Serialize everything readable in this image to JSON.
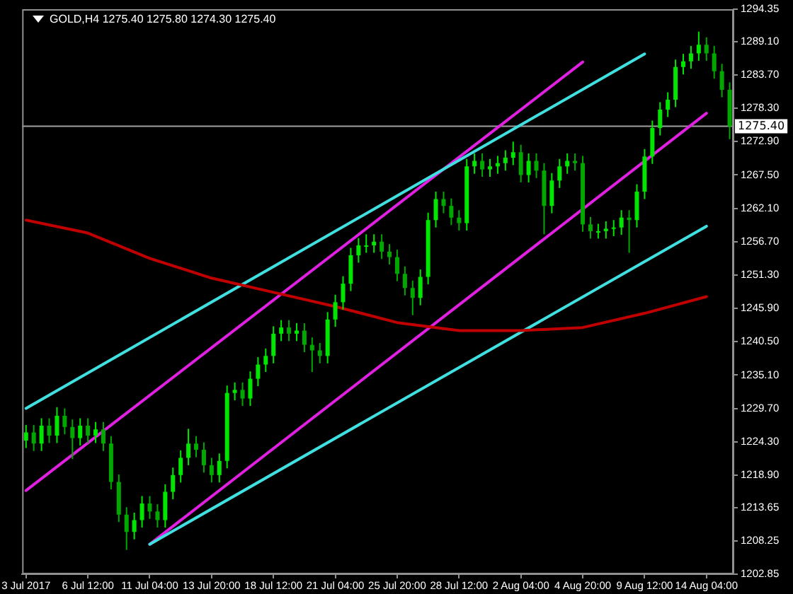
{
  "chart_data": {
    "type": "candlestick",
    "title": "GOLD,H4 1275.40 1275.80 1274.30 1275.40",
    "colors": [
      "#00e600",
      "#00a800",
      "#00e600",
      "#00a800",
      "#00e600",
      "#00a800",
      "#00a800",
      "#00e600",
      "#00a800",
      "#00e600",
      "#00a800",
      "#00a800",
      "#00a800",
      "#00a800",
      "#00e600",
      "#00e600",
      "#00a800",
      "#00a800",
      "#00e600",
      "#00e600",
      "#00e600",
      "#00e600",
      "#00a800",
      "#00a800",
      "#00a800",
      "#00e600",
      "#00e600",
      "#00e600",
      "#00a800",
      "#00e600",
      "#00e600",
      "#00e600",
      "#00e600",
      "#00e600",
      "#00a800",
      "#00e600",
      "#00a800",
      "#00a800",
      "#00a800",
      "#00e600",
      "#00e600",
      "#00e600",
      "#00e600",
      "#00e600",
      "#00e600",
      "#00e600",
      "#00a800",
      "#00a800",
      "#00a800",
      "#00a800",
      "#00a800",
      "#00e600",
      "#00e600",
      "#00e600",
      "#00a800",
      "#00a800",
      "#00a800",
      "#00e600",
      "#00e600",
      "#00a800",
      "#00e600",
      "#00e600",
      "#00e600",
      "#00e600",
      "#00a800",
      "#00e600",
      "#00a800",
      "#00a800",
      "#00e600",
      "#00e600",
      "#00e600",
      "#00a800",
      "#00a800",
      "#00a800",
      "#00e600",
      "#00e600",
      "#00e600",
      "#00e600",
      "#00a800",
      "#00e600",
      "#00e600",
      "#00e600",
      "#00e600",
      "#00e600",
      "#00e600",
      "#00e600",
      "#00e600",
      "#00e600",
      "#00a800",
      "#00a800",
      "#00a800",
      "#00a800"
    ],
    "categories": [
      "3 Jul 2017",
      null,
      null,
      null,
      null,
      null,
      null,
      null,
      "6 Jul 12:00",
      null,
      null,
      null,
      null,
      null,
      null,
      null,
      "11 Jul 04:00",
      null,
      null,
      null,
      null,
      null,
      null,
      null,
      "13 Jul 20:00",
      null,
      null,
      null,
      null,
      null,
      null,
      null,
      "18 Jul 12:00",
      null,
      null,
      null,
      null,
      null,
      null,
      null,
      "21 Jul 04:00",
      null,
      null,
      null,
      null,
      null,
      null,
      null,
      "25 Jul 20:00",
      null,
      null,
      null,
      null,
      null,
      null,
      null,
      "28 Jul 12:00",
      null,
      null,
      null,
      null,
      null,
      null,
      null,
      "2 Aug 04:00",
      null,
      null,
      null,
      null,
      null,
      null,
      null,
      "4 Aug 20:00",
      null,
      null,
      null,
      null,
      null,
      null,
      null,
      "9 Aug 12:00",
      null,
      null,
      null,
      null,
      null,
      null,
      null,
      "14 Aug 04:00",
      null,
      null,
      null
    ],
    "ohlc": [
      [
        1224.5,
        1227.0,
        1223.3,
        1225.8
      ],
      [
        1225.8,
        1227.0,
        1222.8,
        1224.0
      ],
      [
        1224.0,
        1228.1,
        1222.8,
        1226.9
      ],
      [
        1226.9,
        1228.1,
        1224.1,
        1225.3
      ],
      [
        1225.3,
        1229.9,
        1224.1,
        1228.5
      ],
      [
        1228.5,
        1229.7,
        1225.5,
        1226.7
      ],
      [
        1226.7,
        1227.9,
        1221.5,
        1224.9
      ],
      [
        1224.9,
        1228.1,
        1223.7,
        1226.9
      ],
      [
        1226.9,
        1228.1,
        1224.1,
        1225.3
      ],
      [
        1225.3,
        1227.5,
        1224.1,
        1226.3
      ],
      [
        1226.3,
        1227.5,
        1222.8,
        1224.0
      ],
      [
        1224.0,
        1225.2,
        1216.6,
        1217.8
      ],
      [
        1217.8,
        1219.0,
        1211.3,
        1212.5
      ],
      [
        1212.5,
        1213.7,
        1206.8,
        1209.7
      ],
      [
        1209.7,
        1212.8,
        1208.5,
        1211.6
      ],
      [
        1211.6,
        1215.5,
        1210.4,
        1214.3
      ],
      [
        1214.3,
        1215.5,
        1211.8,
        1213.0
      ],
      [
        1213.0,
        1214.2,
        1210.4,
        1211.6
      ],
      [
        1211.6,
        1217.4,
        1210.4,
        1216.2
      ],
      [
        1216.2,
        1220.1,
        1215.0,
        1218.9
      ],
      [
        1218.9,
        1222.9,
        1217.7,
        1221.7
      ],
      [
        1221.7,
        1226.4,
        1220.5,
        1224.0
      ],
      [
        1224.0,
        1225.2,
        1221.8,
        1223.0
      ],
      [
        1223.0,
        1224.2,
        1219.3,
        1220.5
      ],
      [
        1220.5,
        1221.7,
        1217.7,
        1218.9
      ],
      [
        1218.9,
        1222.4,
        1217.7,
        1221.2
      ],
      [
        1221.2,
        1233.4,
        1220.0,
        1232.2
      ],
      [
        1232.2,
        1233.9,
        1231.0,
        1232.7
      ],
      [
        1232.7,
        1233.9,
        1230.1,
        1231.3
      ],
      [
        1231.3,
        1235.7,
        1230.1,
        1234.5
      ],
      [
        1234.5,
        1238.0,
        1233.3,
        1236.8
      ],
      [
        1236.8,
        1239.4,
        1235.6,
        1238.2
      ],
      [
        1238.2,
        1243.0,
        1237.0,
        1241.8
      ],
      [
        1241.8,
        1244.0,
        1240.6,
        1242.8
      ],
      [
        1242.8,
        1244.0,
        1240.6,
        1241.8
      ],
      [
        1241.8,
        1243.5,
        1240.6,
        1242.3
      ],
      [
        1242.3,
        1243.5,
        1238.8,
        1240.0
      ],
      [
        1240.0,
        1241.2,
        1235.6,
        1239.1
      ],
      [
        1239.1,
        1240.3,
        1237.0,
        1238.2
      ],
      [
        1238.2,
        1245.3,
        1237.0,
        1244.1
      ],
      [
        1244.1,
        1248.1,
        1242.9,
        1246.9
      ],
      [
        1246.9,
        1251.1,
        1245.7,
        1249.9
      ],
      [
        1249.9,
        1255.7,
        1248.7,
        1254.5
      ],
      [
        1254.5,
        1257.3,
        1253.3,
        1256.1
      ],
      [
        1256.1,
        1257.9,
        1254.9,
        1256.1
      ],
      [
        1256.1,
        1257.9,
        1254.9,
        1256.7
      ],
      [
        1256.7,
        1257.9,
        1253.9,
        1255.1
      ],
      [
        1255.1,
        1256.3,
        1253.0,
        1254.2
      ],
      [
        1254.2,
        1255.4,
        1250.3,
        1251.5
      ],
      [
        1251.5,
        1252.7,
        1248.0,
        1249.2
      ],
      [
        1249.2,
        1250.4,
        1244.8,
        1247.6
      ],
      [
        1247.6,
        1252.2,
        1246.4,
        1251.0
      ],
      [
        1251.0,
        1261.4,
        1249.8,
        1260.2
      ],
      [
        1260.2,
        1264.8,
        1259.0,
        1263.6
      ],
      [
        1263.6,
        1264.8,
        1261.3,
        1262.5
      ],
      [
        1262.5,
        1263.7,
        1259.4,
        1260.6
      ],
      [
        1260.6,
        1261.8,
        1258.5,
        1259.7
      ],
      [
        1259.7,
        1270.1,
        1258.5,
        1268.9
      ],
      [
        1268.9,
        1271.0,
        1267.7,
        1269.8
      ],
      [
        1269.8,
        1271.0,
        1267.2,
        1268.4
      ],
      [
        1268.4,
        1270.1,
        1267.2,
        1268.9
      ],
      [
        1268.9,
        1270.6,
        1267.7,
        1269.4
      ],
      [
        1269.4,
        1271.5,
        1268.2,
        1270.3
      ],
      [
        1270.3,
        1272.9,
        1269.1,
        1271.2
      ],
      [
        1271.2,
        1272.4,
        1266.3,
        1267.5
      ],
      [
        1267.5,
        1271.0,
        1266.3,
        1269.8
      ],
      [
        1269.8,
        1271.0,
        1267.0,
        1268.2
      ],
      [
        1268.2,
        1269.4,
        1257.9,
        1262.5
      ],
      [
        1262.5,
        1267.8,
        1261.3,
        1266.6
      ],
      [
        1266.6,
        1270.1,
        1265.4,
        1268.9
      ],
      [
        1268.9,
        1271.0,
        1267.7,
        1269.8
      ],
      [
        1269.8,
        1271.0,
        1268.2,
        1269.4
      ],
      [
        1269.4,
        1270.6,
        1258.3,
        1259.5
      ],
      [
        1259.5,
        1260.7,
        1257.2,
        1258.4
      ],
      [
        1258.4,
        1259.6,
        1257.2,
        1258.4
      ],
      [
        1258.4,
        1260.0,
        1257.2,
        1258.8
      ],
      [
        1258.8,
        1260.2,
        1257.6,
        1259.0
      ],
      [
        1259.0,
        1261.8,
        1257.8,
        1260.6
      ],
      [
        1260.6,
        1261.8,
        1254.9,
        1260.2
      ],
      [
        1260.2,
        1266.0,
        1259.0,
        1264.8
      ],
      [
        1264.8,
        1271.7,
        1263.6,
        1270.5
      ],
      [
        1270.5,
        1276.3,
        1269.3,
        1275.1
      ],
      [
        1275.1,
        1279.3,
        1273.9,
        1278.1
      ],
      [
        1278.1,
        1280.9,
        1276.9,
        1279.7
      ],
      [
        1279.7,
        1286.2,
        1278.5,
        1285.0
      ],
      [
        1285.0,
        1287.1,
        1283.8,
        1285.9
      ],
      [
        1285.9,
        1288.4,
        1284.7,
        1287.2
      ],
      [
        1287.2,
        1290.7,
        1286.0,
        1288.6
      ],
      [
        1288.6,
        1289.8,
        1286.0,
        1287.2
      ],
      [
        1287.2,
        1288.4,
        1283.1,
        1284.3
      ],
      [
        1284.3,
        1285.5,
        1280.1,
        1281.3
      ],
      [
        1281.3,
        1282.5,
        1273.3,
        1275.4
      ]
    ],
    "series": [
      {
        "type": "line",
        "color": "#c00000",
        "x": [
          "3 Jul 2017",
          "6 Jul 12:00",
          "11 Jul 04:00",
          "13 Jul 20:00",
          "18 Jul 12:00",
          "21 Jul 04:00",
          "25 Jul 20:00",
          "28 Jul 12:00",
          "2 Aug 04:00",
          "4 Aug 20:00",
          "9 Aug 12:00",
          "14 Aug 04:00"
        ],
        "values": [
          1260.2,
          1258.1,
          1254.0,
          1250.8,
          1248.5,
          1246.2,
          1243.6,
          1242.3,
          1242.3,
          1242.8,
          1245.1,
          1247.8
        ]
      },
      {
        "type": "line",
        "color": "#40e0e0",
        "x": [
          "3 Jul 2017",
          "9 Aug 12:00"
        ],
        "values": [
          1229.7,
          1287.1
        ]
      },
      {
        "type": "line",
        "color": "#40e0e0",
        "x": [
          "11 Jul 04:00",
          "14 Aug 04:00"
        ],
        "values": [
          1207.7,
          1259.2
        ]
      },
      {
        "type": "line",
        "color": "#e020e0",
        "x": [
          "3 Jul 2017",
          "4 Aug 20:00"
        ],
        "values": [
          1216.4,
          1285.8
        ]
      },
      {
        "type": "line",
        "color": "#e020e0",
        "x": [
          "11 Jul 04:00",
          "14 Aug 04:00"
        ],
        "values": [
          1207.7,
          1277.5
        ]
      }
    ],
    "ylim": [
      1202.85,
      1294.35
    ],
    "yticks": [
      {
        "value": 1202.85,
        "label": "1202.85"
      },
      {
        "value": 1208.25,
        "label": "1208.25"
      },
      {
        "value": 1213.65,
        "label": "1213.65"
      },
      {
        "value": 1218.9,
        "label": "1218.90"
      },
      {
        "value": 1224.3,
        "label": "1224.30"
      },
      {
        "value": 1229.7,
        "label": "1229.70"
      },
      {
        "value": 1235.1,
        "label": "1235.10"
      },
      {
        "value": 1240.5,
        "label": "1240.50"
      },
      {
        "value": 1245.9,
        "label": "1245.90"
      },
      {
        "value": 1251.3,
        "label": "1251.30"
      },
      {
        "value": 1256.7,
        "label": "1256.70"
      },
      {
        "value": 1262.1,
        "label": "1262.10"
      },
      {
        "value": 1267.5,
        "label": "1267.50"
      },
      {
        "value": 1272.9,
        "label": "1272.90"
      },
      {
        "value": 1278.3,
        "label": "1278.30"
      },
      {
        "value": 1283.7,
        "label": "1283.70"
      },
      {
        "value": 1289.1,
        "label": "1289.10"
      },
      {
        "value": 1294.35,
        "label": "1294.35"
      }
    ],
    "ref_lines": [
      {
        "axis": "y",
        "value": 1275.4,
        "label": "1275.40",
        "color": "#a0a0a0"
      }
    ],
    "grid": false,
    "legend": false,
    "marker": "none",
    "line_style": "solid"
  }
}
